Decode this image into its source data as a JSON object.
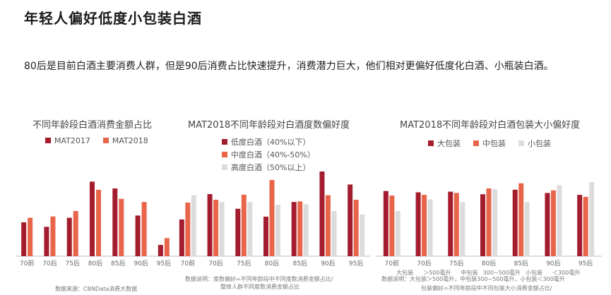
{
  "page": {
    "title": "年轻人偏好低度小包装白酒",
    "description": "80后是目前白酒主要消费人群，但是90后消费占比快速提升，消费潜力巨大，他们相对更偏好低度化白酒、小瓶装白酒。"
  },
  "colors": {
    "dark_red": "#a31d2e",
    "orange": "#e8654a",
    "light_gray": "#dcdcdc",
    "axis": "#bfbfbf"
  },
  "chart_data": [
    {
      "type": "bar",
      "title": "不同年龄段白酒消费金额占比",
      "categories": [
        "70前",
        "70后",
        "75后",
        "80后",
        "85后",
        "90后",
        "95后"
      ],
      "series": [
        {
          "name": "MAT2017",
          "values": [
            7.5,
            6.5,
            8.5,
            16.5,
            15.0,
            9.0,
            2.5
          ]
        },
        {
          "name": "MAT2018",
          "values": [
            8.5,
            8.8,
            10.0,
            14.7,
            12.7,
            12.0,
            4.0
          ]
        }
      ],
      "ylim": [
        0,
        20
      ],
      "footer": "数据来源：CBNData消费大数据"
    },
    {
      "type": "bar",
      "title": "MAT2018不同年龄段对白酒度数偏好度",
      "categories": [
        "70前",
        "70后",
        "75后",
        "80后",
        "85后",
        "90后",
        "95后"
      ],
      "series": [
        {
          "name": "低度白酒（40%以下）",
          "values": [
            65,
            110,
            84,
            70,
            96,
            150,
            127
          ]
        },
        {
          "name": "中度白酒（40%-50%）",
          "values": [
            95,
            100,
            109,
            135,
            97,
            108,
            100
          ]
        },
        {
          "name": "高度白酒（50%以上）",
          "values": [
            108,
            96,
            96,
            91,
            92,
            80,
            74
          ]
        }
      ],
      "ylim": [
        0,
        160
      ],
      "footer_lines": [
        "数据说明：度数偏好=不同年龄段中不同度数消费金额占比/",
        "整体人群不同度数消费金额占比"
      ]
    },
    {
      "type": "bar",
      "title": "MAT2018不同年龄段对白酒包装大小偏好度",
      "categories": [
        "70前",
        "70后",
        "75后",
        "80后",
        "85后",
        "90后",
        "95后"
      ],
      "series": [
        {
          "name": "大包装",
          "values": [
            101,
            99,
            100,
            96,
            103,
            98,
            95
          ]
        },
        {
          "name": "中包装",
          "values": [
            94,
            95,
            98,
            105,
            113,
            102,
            92
          ]
        },
        {
          "name": "小包装",
          "values": [
            70,
            88,
            84,
            104,
            84,
            110,
            115
          ]
        }
      ],
      "x_extra_labels": [
        "大包装",
        "＞500毫升",
        "中包装",
        "300~500毫升",
        "小包装",
        "＜300毫升"
      ],
      "ylim": [
        0,
        140
      ],
      "footer_lines": [
        "数据说明：大包装＞500毫升，中包装300~500毫升，小包装＜300毫升",
        "包装偏好=不同年龄段中不同包装大小消费金额占比/"
      ]
    }
  ]
}
